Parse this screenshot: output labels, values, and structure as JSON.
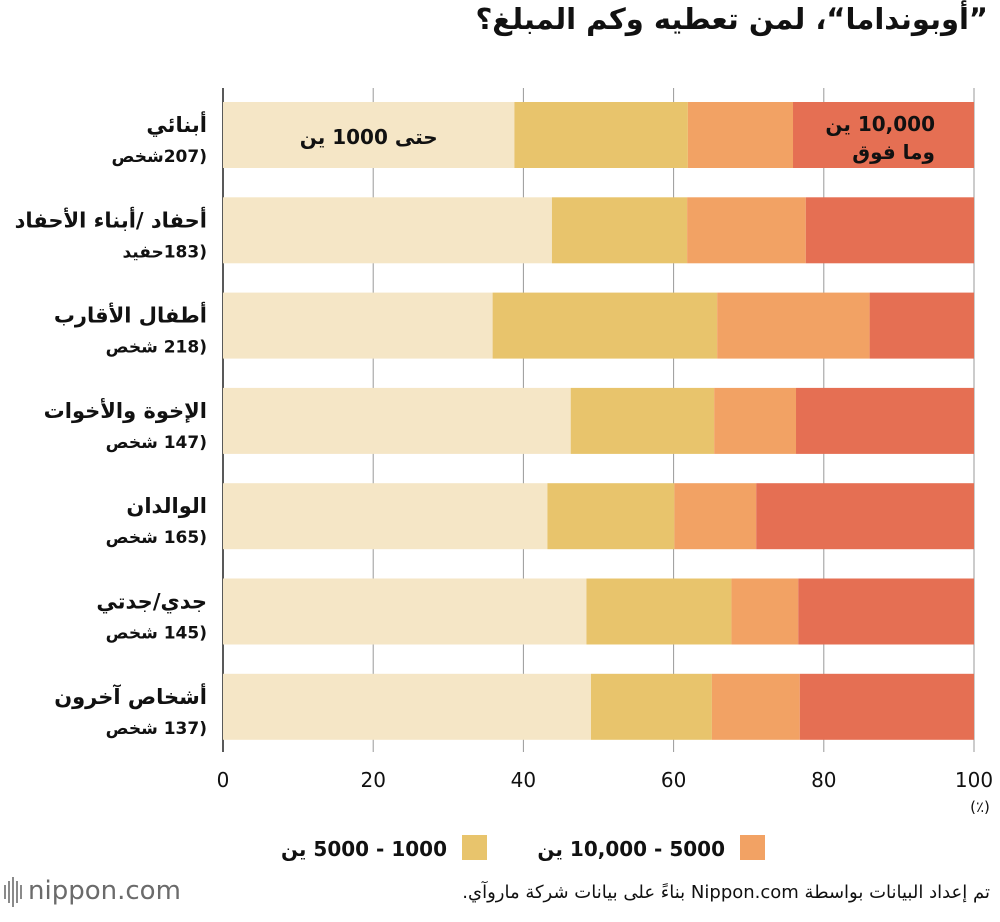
{
  "title": "”أوبونداما“، لمن تعطيه وكم المبلغ؟",
  "source": "تم إعداد البيانات بواسطة Nippon.com بناءً على بيانات  شركة ماروآي.",
  "logo": "nippon.com",
  "colors": {
    "cat1": "#f5e6c6",
    "cat2": "#e8c46c",
    "cat3": "#f2a264",
    "cat4": "#e56f53",
    "axis": "#222222",
    "grid": "#999999"
  },
  "chart_data": {
    "type": "bar",
    "orientation": "horizontal",
    "stacked": true,
    "title": "”أوبونداما“، لمن تعطيه وكم المبلغ؟",
    "xunit": "(٪)",
    "xlim": [
      0,
      100
    ],
    "xticks": [
      0,
      20,
      40,
      60,
      80,
      100
    ],
    "grid": true,
    "categories": [
      {
        "label": "أبنائي",
        "sub": "(207شخص"
      },
      {
        "label": "أحفاد /أبناء الأحفاد",
        "sub": "(183حفيد"
      },
      {
        "label": "أطفال الأقارب",
        "sub": "(218 شخص"
      },
      {
        "label": "الإخوة والأخوات",
        "sub": "(147 شخص"
      },
      {
        "label": "الوالدان",
        "sub": "(165 شخص"
      },
      {
        "label": "جدي/جدتي",
        "sub": "(145 شخص"
      },
      {
        "label": "أشخاص آخرون",
        "sub": "(137 شخص"
      }
    ],
    "series": [
      {
        "name": "حتى 1000 ين",
        "color": "#f5e6c6",
        "values": [
          38.8,
          43.8,
          35.9,
          46.3,
          43.2,
          48.4,
          49.0
        ]
      },
      {
        "name": "1000 - 5000 ين",
        "color": "#e8c46c",
        "values": [
          23.1,
          18.0,
          29.9,
          19.1,
          16.9,
          19.3,
          16.1
        ]
      },
      {
        "name": "5000 - 10,000 ين",
        "color": "#f2a264",
        "values": [
          14.0,
          15.8,
          20.3,
          10.9,
          10.9,
          8.9,
          11.7
        ]
      },
      {
        "name": "10,000 ين وما فوق",
        "color": "#e56f53",
        "values": [
          24.1,
          22.4,
          13.9,
          23.7,
          29.0,
          23.4,
          23.2
        ]
      }
    ],
    "in_bar_labels": {
      "first": "حتى 1000 ين",
      "last_line1": "10,000 ين",
      "last_line2": "وما فوق"
    },
    "legend": [
      {
        "name": "1000 - 5000 ين",
        "color": "#e8c46c"
      },
      {
        "name": "5000 - 10,000 ين",
        "color": "#f2a264"
      }
    ],
    "legend_position": "bottom"
  }
}
